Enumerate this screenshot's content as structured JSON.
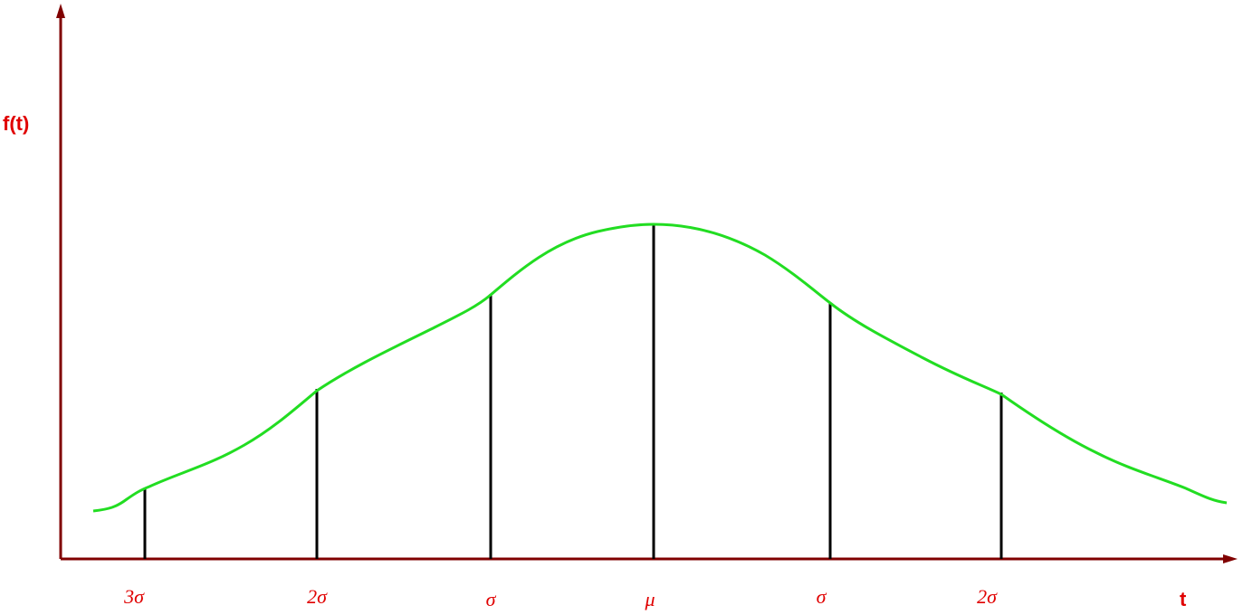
{
  "axes": {
    "y_label": "f(t)",
    "x_label": "t"
  },
  "markers": [
    {
      "label": "3σ"
    },
    {
      "label": "2σ"
    },
    {
      "label": "σ"
    },
    {
      "label": "μ"
    },
    {
      "label": "σ"
    },
    {
      "label": "2σ"
    }
  ]
}
